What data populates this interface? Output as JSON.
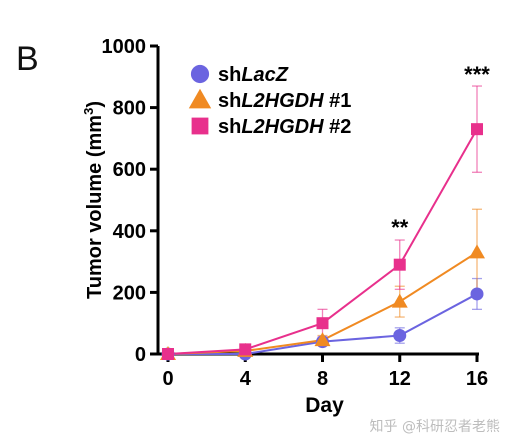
{
  "panel_label": "B",
  "watermark": "知乎 @科研忍者老熊",
  "chart_data": {
    "type": "line",
    "xlabel": "Day",
    "ylabel": "Tumor volume (mm³)",
    "ylabel_parts": {
      "main": "Tumor volume (mm",
      "sup": "3",
      "end": ")"
    },
    "xlim": [
      0,
      16
    ],
    "ylim": [
      0,
      1000
    ],
    "xticks": [
      0,
      4,
      8,
      12,
      16
    ],
    "yticks": [
      0,
      200,
      400,
      600,
      800,
      1000
    ],
    "grid": false,
    "legend_position": "top-left",
    "x": [
      0,
      4,
      8,
      12,
      16
    ],
    "series": [
      {
        "name": "shLacZ",
        "name_parts": [
          {
            "t": "sh",
            "i": false
          },
          {
            "t": "LacZ",
            "i": true
          }
        ],
        "marker": "circle",
        "color": "#6b64e0",
        "values": [
          0,
          0,
          40,
          60,
          195
        ],
        "errors": [
          0,
          0,
          10,
          25,
          50
        ]
      },
      {
        "name": "shL2HGDH #1",
        "name_parts": [
          {
            "t": "sh",
            "i": false
          },
          {
            "t": "L2HGDH",
            "i": true
          },
          {
            "t": " #1",
            "i": false
          }
        ],
        "marker": "triangle",
        "color": "#f08a22",
        "values": [
          0,
          10,
          45,
          170,
          330
        ],
        "errors": [
          0,
          5,
          15,
          50,
          140
        ]
      },
      {
        "name": "shL2HGDH #2",
        "name_parts": [
          {
            "t": "sh",
            "i": false
          },
          {
            "t": "L2HGDH",
            "i": true
          },
          {
            "t": " #2",
            "i": false
          }
        ],
        "marker": "square",
        "color": "#e8308c",
        "values": [
          0,
          15,
          100,
          290,
          730
        ],
        "errors": [
          0,
          5,
          45,
          80,
          140
        ]
      }
    ],
    "annotations": [
      {
        "x": 12,
        "text": "**"
      },
      {
        "x": 16,
        "text": "***"
      }
    ]
  }
}
